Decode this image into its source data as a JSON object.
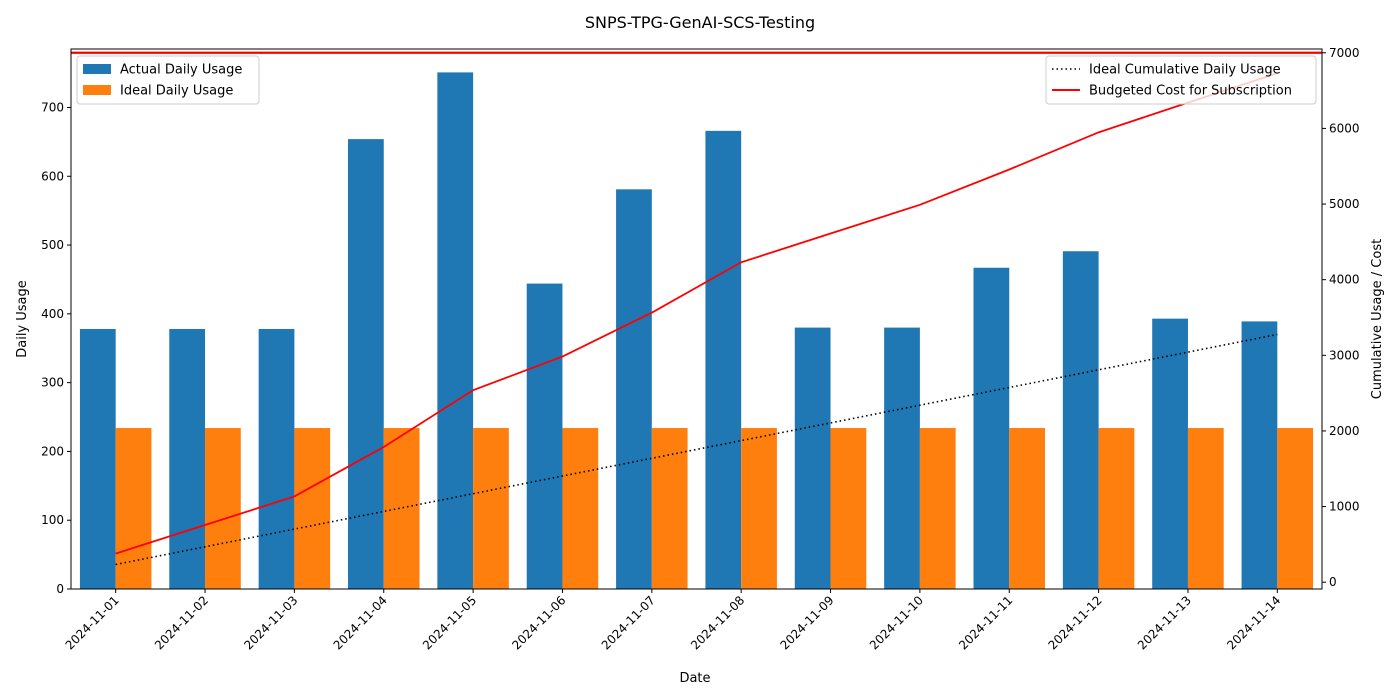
{
  "chart_data": {
    "type": "bar",
    "title": "SNPS-TPG-GenAI-SCS-Testing",
    "xlabel": "Date",
    "ylabel": "Daily Usage",
    "ylabel_right": "Cumulative Usage / Cost",
    "ylim": [
      0,
      785
    ],
    "ylim_right": [
      -90,
      7050
    ],
    "yticks": [
      0,
      100,
      200,
      300,
      400,
      500,
      600,
      700
    ],
    "yticks_right": [
      0,
      1000,
      2000,
      3000,
      4000,
      5000,
      6000,
      7000
    ],
    "grid": false,
    "categories": [
      "2024-11-01",
      "2024-11-02",
      "2024-11-03",
      "2024-11-04",
      "2024-11-05",
      "2024-11-06",
      "2024-11-07",
      "2024-11-08",
      "2024-11-09",
      "2024-11-10",
      "2024-11-11",
      "2024-11-12",
      "2024-11-13",
      "2024-11-14"
    ],
    "series": [
      {
        "name": "Actual Daily Usage",
        "axis": "left",
        "kind": "bar",
        "color": "#1f77b4",
        "values": [
          378,
          378,
          378,
          654,
          751,
          444,
          581,
          666,
          380,
          380,
          467,
          491,
          393,
          389
        ]
      },
      {
        "name": "Ideal Daily Usage",
        "axis": "left",
        "kind": "bar",
        "color": "#ff7f0e",
        "values": [
          234,
          234,
          234,
          234,
          234,
          234,
          234,
          234,
          234,
          234,
          234,
          234,
          234,
          234
        ]
      },
      {
        "name": "",
        "axis": "right",
        "kind": "line",
        "style": "solid",
        "color": "#ff0000",
        "values": [
          378,
          756,
          1134,
          1788,
          2539,
          2983,
          3564,
          4230,
          4610,
          4990,
          5457,
          5948,
          6341,
          6730
        ]
      },
      {
        "name": "Ideal Cumulative Daily Usage",
        "axis": "right",
        "kind": "line",
        "style": "dotted",
        "color": "#000000",
        "values": [
          234,
          468,
          702,
          936,
          1170,
          1404,
          1638,
          1872,
          2106,
          2340,
          2574,
          2808,
          3042,
          3276
        ]
      },
      {
        "name": "Budgeted Cost for Subscription",
        "axis": "right",
        "kind": "hline",
        "style": "solid",
        "color": "#ff0000",
        "value": 7000
      }
    ],
    "legend_left": "top-left",
    "legend_right": "top-right"
  }
}
